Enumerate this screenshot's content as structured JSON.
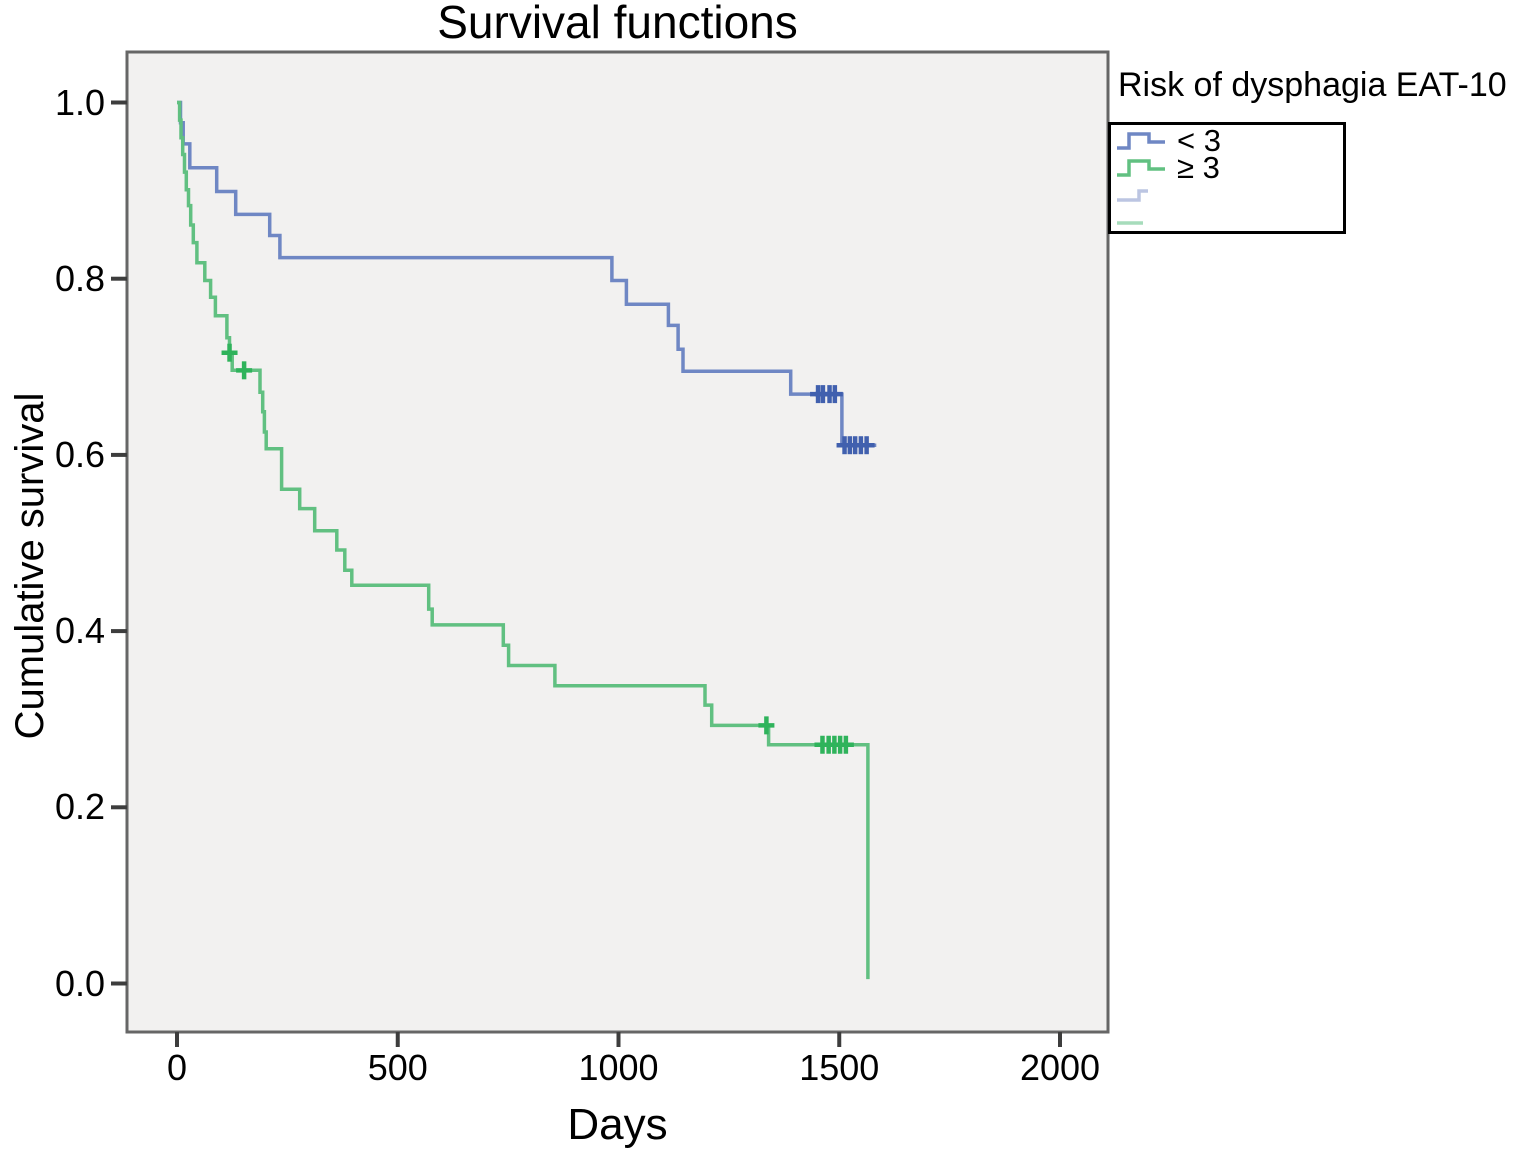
{
  "chart_data": {
    "type": "line",
    "subtype": "kaplan-meier-step",
    "title": "Survival functions",
    "xlabel": "Days",
    "ylabel": "Cumulative survival",
    "legend_title": "Risk of dysphagia EAT-10",
    "grid": false,
    "legend_position": "top-right-outside",
    "xlim": [
      -113,
      2110
    ],
    "ylim": [
      -0.055,
      1.06
    ],
    "xticks": {
      "values": [
        0,
        500,
        1000,
        1500,
        2000
      ],
      "labels": [
        "0",
        "500",
        "1000",
        "1500",
        "2000"
      ]
    },
    "yticks": {
      "values": [
        1.0,
        0.8,
        0.6,
        0.4,
        0.2,
        0.0
      ],
      "labels": [
        "1.0",
        "0.8",
        "0.6",
        "0.4",
        "0.2",
        "0.0"
      ]
    },
    "series": [
      {
        "name": "< 3",
        "color": "#6F87C4",
        "censor_color": "#4160AE",
        "points": [
          [
            0,
            1.0
          ],
          [
            8,
            0.977
          ],
          [
            14,
            0.953
          ],
          [
            29,
            0.926
          ],
          [
            90,
            0.899
          ],
          [
            133,
            0.873
          ],
          [
            210,
            0.849
          ],
          [
            233,
            0.824
          ],
          [
            985,
            0.798
          ],
          [
            1018,
            0.771
          ],
          [
            1113,
            0.747
          ],
          [
            1135,
            0.72
          ],
          [
            1146,
            0.695
          ],
          [
            1390,
            0.669
          ],
          [
            1506,
            0.611
          ],
          [
            1584,
            0.611
          ]
        ],
        "censor_points": [
          [
            1452,
            0.669
          ],
          [
            1463,
            0.669
          ],
          [
            1478,
            0.669
          ],
          [
            1490,
            0.669
          ],
          [
            1512,
            0.611
          ],
          [
            1524,
            0.611
          ],
          [
            1536,
            0.611
          ],
          [
            1549,
            0.611
          ],
          [
            1562,
            0.611
          ]
        ]
      },
      {
        "name": "≥ 3",
        "color": "#61C081",
        "censor_color": "#2FB35B",
        "points": [
          [
            0,
            1.0
          ],
          [
            6,
            0.98
          ],
          [
            9,
            0.96
          ],
          [
            13,
            0.941
          ],
          [
            17,
            0.921
          ],
          [
            21,
            0.901
          ],
          [
            26,
            0.883
          ],
          [
            31,
            0.861
          ],
          [
            37,
            0.841
          ],
          [
            45,
            0.818
          ],
          [
            63,
            0.798
          ],
          [
            76,
            0.779
          ],
          [
            87,
            0.758
          ],
          [
            113,
            0.733
          ],
          [
            119,
            0.716
          ],
          [
            125,
            0.696
          ],
          [
            188,
            0.671
          ],
          [
            194,
            0.649
          ],
          [
            198,
            0.626
          ],
          [
            202,
            0.607
          ],
          [
            237,
            0.561
          ],
          [
            278,
            0.539
          ],
          [
            312,
            0.514
          ],
          [
            362,
            0.492
          ],
          [
            380,
            0.469
          ],
          [
            396,
            0.452
          ],
          [
            570,
            0.425
          ],
          [
            578,
            0.407
          ],
          [
            739,
            0.384
          ],
          [
            751,
            0.361
          ],
          [
            856,
            0.338
          ],
          [
            1196,
            0.316
          ],
          [
            1211,
            0.293
          ],
          [
            1340,
            0.271
          ],
          [
            1565,
            0.005
          ]
        ],
        "censor_points": [
          [
            119,
            0.716
          ],
          [
            152,
            0.696
          ],
          [
            1335,
            0.293
          ],
          [
            1462,
            0.271
          ],
          [
            1476,
            0.271
          ],
          [
            1489,
            0.271
          ],
          [
            1502,
            0.271
          ],
          [
            1515,
            0.271
          ]
        ]
      }
    ],
    "legend_items": [
      {
        "label": "< 3",
        "symbol": "step",
        "color": "#6F87C4"
      },
      {
        "label": "≥ 3",
        "symbol": "step",
        "color": "#61C081"
      },
      {
        "label": "",
        "symbol": "censored-step",
        "color": "#BCC5E2"
      },
      {
        "label": "",
        "symbol": "censored-dash",
        "color": "#A6DCBB"
      }
    ],
    "colors": {
      "plot_bg": "#F2F1F0",
      "plot_border": "#666666",
      "tick": "#3D3D3D",
      "text": "#000000",
      "legend_border": "#000000"
    }
  }
}
